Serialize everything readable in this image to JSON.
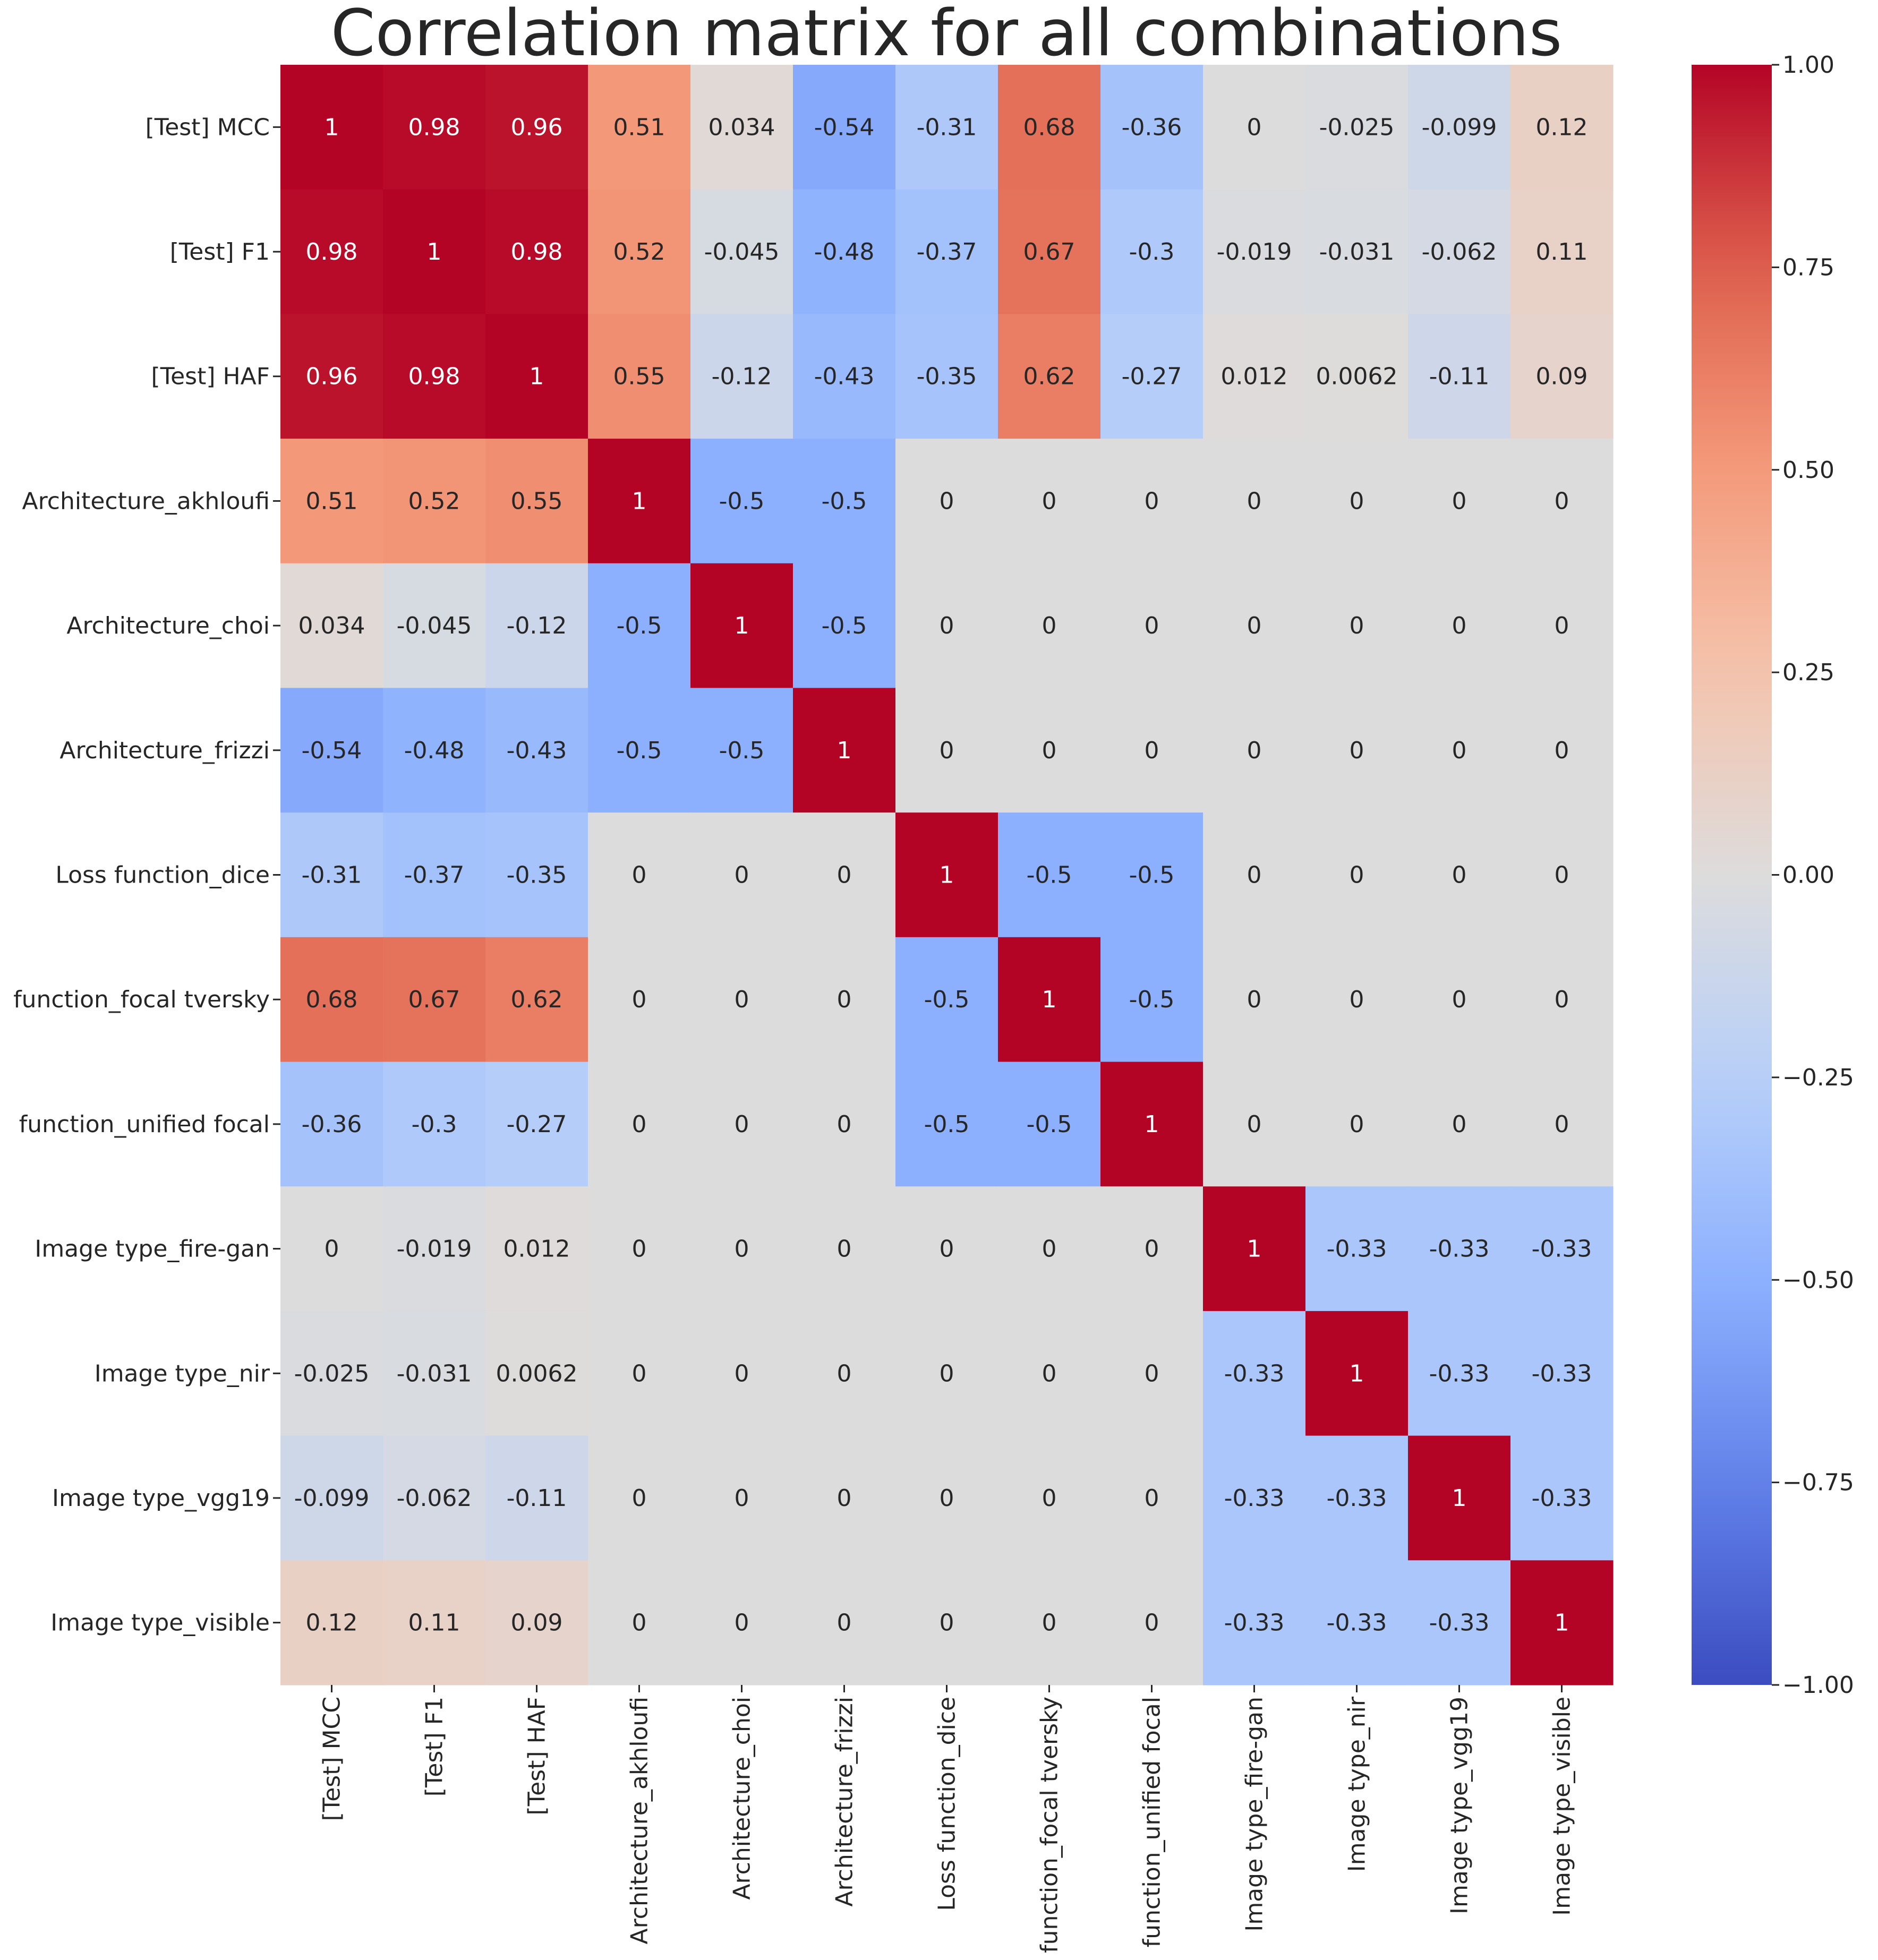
{
  "chart_data": {
    "type": "heatmap",
    "title": "Correlation matrix for all combinations",
    "colormap": "coolwarm",
    "vmin": -1.0,
    "vmax": 1.0,
    "row_labels": [
      "[Test] MCC",
      "[Test] F1",
      "[Test] HAF",
      "Architecture_akhloufi",
      "Architecture_choi",
      "Architecture_frizzi",
      "Loss function_dice",
      "function_focal tversky",
      "function_unified focal",
      "Image type_fire-gan",
      "Image type_nir",
      "Image type_vgg19",
      "Image type_visible"
    ],
    "col_labels": [
      "[Test] MCC",
      "[Test] F1",
      "[Test] HAF",
      "Architecture_akhloufi",
      "Architecture_choi",
      "Architecture_frizzi",
      "Loss function_dice",
      "function_focal tversky",
      "function_unified focal",
      "Image type_fire-gan",
      "Image type_nir",
      "Image type_vgg19",
      "Image type_visible"
    ],
    "values": [
      [
        1,
        0.98,
        0.96,
        0.51,
        0.034,
        -0.54,
        -0.31,
        0.68,
        -0.36,
        0,
        -0.025,
        -0.099,
        0.12
      ],
      [
        0.98,
        1,
        0.98,
        0.52,
        -0.045,
        -0.48,
        -0.37,
        0.67,
        -0.3,
        -0.019,
        -0.031,
        -0.062,
        0.11
      ],
      [
        0.96,
        0.98,
        1,
        0.55,
        -0.12,
        -0.43,
        -0.35,
        0.62,
        -0.27,
        0.012,
        0.0062,
        -0.11,
        0.09
      ],
      [
        0.51,
        0.52,
        0.55,
        1,
        -0.5,
        -0.5,
        0,
        0,
        0,
        0,
        0,
        0,
        0
      ],
      [
        0.034,
        -0.045,
        -0.12,
        -0.5,
        1,
        -0.5,
        0,
        0,
        0,
        0,
        0,
        0,
        0
      ],
      [
        -0.54,
        -0.48,
        -0.43,
        -0.5,
        -0.5,
        1,
        0,
        0,
        0,
        0,
        0,
        0,
        0
      ],
      [
        -0.31,
        -0.37,
        -0.35,
        0,
        0,
        0,
        1,
        -0.5,
        -0.5,
        0,
        0,
        0,
        0
      ],
      [
        0.68,
        0.67,
        0.62,
        0,
        0,
        0,
        -0.5,
        1,
        -0.5,
        0,
        0,
        0,
        0
      ],
      [
        -0.36,
        -0.3,
        -0.27,
        0,
        0,
        0,
        -0.5,
        -0.5,
        1,
        0,
        0,
        0,
        0
      ],
      [
        0,
        -0.019,
        0.012,
        0,
        0,
        0,
        0,
        0,
        0,
        1,
        -0.33,
        -0.33,
        -0.33
      ],
      [
        -0.025,
        -0.031,
        0.0062,
        0,
        0,
        0,
        0,
        0,
        0,
        -0.33,
        1,
        -0.33,
        -0.33
      ],
      [
        -0.099,
        -0.062,
        -0.11,
        0,
        0,
        0,
        0,
        0,
        0,
        -0.33,
        -0.33,
        1,
        -0.33
      ],
      [
        0.12,
        0.11,
        0.09,
        0,
        0,
        0,
        0,
        0,
        0,
        -0.33,
        -0.33,
        -0.33,
        1
      ]
    ],
    "colorbar_ticks": [
      1.0,
      0.75,
      0.5,
      0.25,
      0.0,
      -0.25,
      -0.5,
      -0.75,
      -1.0
    ],
    "colorbar_tick_labels": [
      "1.00",
      "0.75",
      "0.50",
      "0.25",
      "0.00",
      "−0.25",
      "−0.50",
      "−0.75",
      "−1.00"
    ]
  }
}
